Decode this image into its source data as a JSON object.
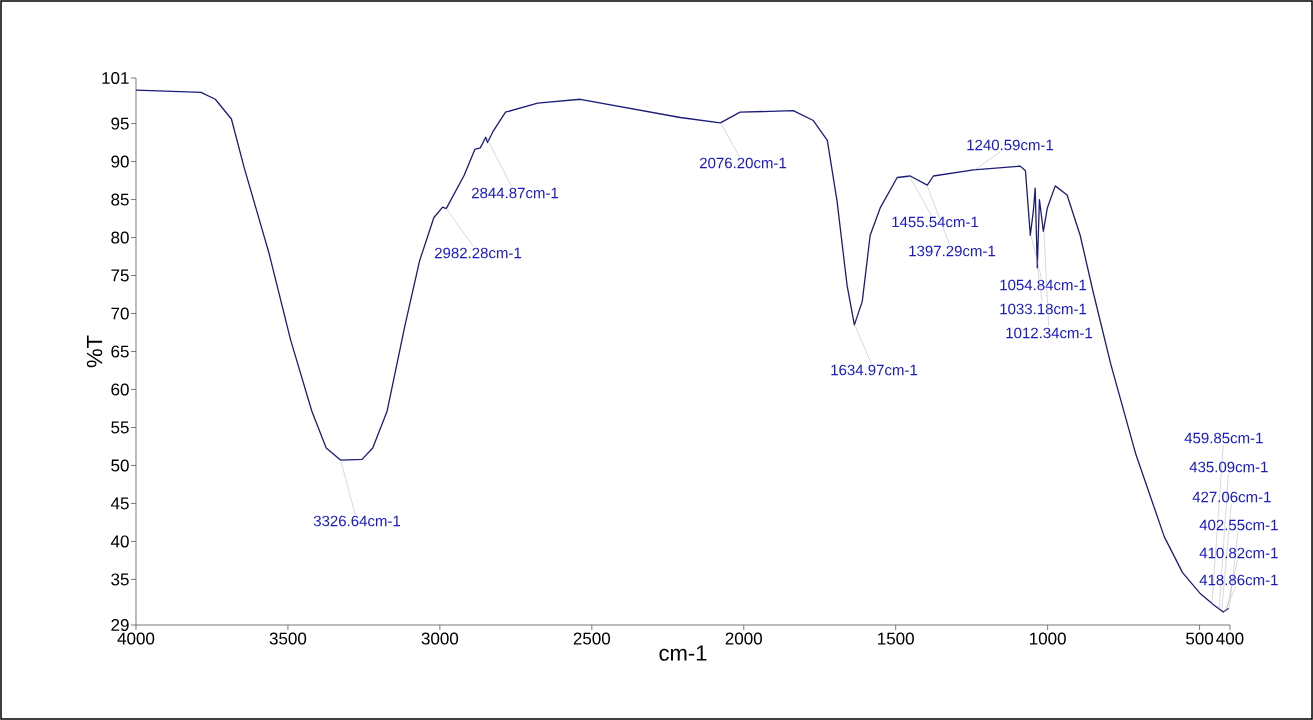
{
  "chart_data": {
    "type": "line",
    "xlabel": "cm-1",
    "ylabel": "%T",
    "x": [
      4000,
      3786,
      3739,
      3686,
      3644,
      3562,
      3491,
      3421,
      3374,
      3326,
      3256,
      3221,
      3174,
      3115,
      3067,
      3020,
      2991,
      2979,
      2920,
      2885,
      2867,
      2849,
      2843,
      2826,
      2784,
      2678,
      2538,
      2209,
      2077,
      2012,
      1837,
      1771,
      1725,
      1693,
      1660,
      1636,
      1610,
      1584,
      1551,
      1495,
      1452,
      1396,
      1376,
      1244,
      1090,
      1073,
      1057,
      1047,
      1041,
      1034,
      1027,
      1014,
      1001,
      975,
      936,
      893,
      850,
      792,
      710,
      616,
      556,
      497,
      452,
      422,
      404
    ],
    "values": [
      99.4,
      99.1,
      98.2,
      95.6,
      89.2,
      77.9,
      66.5,
      57.1,
      52.3,
      50.7,
      50.8,
      52.3,
      57.1,
      68.4,
      76.9,
      82.6,
      84.0,
      83.8,
      88.2,
      91.6,
      91.8,
      93.2,
      92.5,
      93.9,
      96.5,
      97.7,
      98.2,
      95.8,
      95.1,
      96.5,
      96.7,
      95.4,
      92.8,
      84.8,
      73.7,
      68.5,
      71.6,
      80.3,
      83.9,
      87.9,
      88.1,
      86.9,
      88.1,
      88.9,
      89.4,
      88.8,
      80.3,
      83.5,
      86.5,
      76.0,
      85.0,
      80.8,
      83.9,
      86.8,
      85.6,
      80.3,
      72.8,
      63.3,
      51.5,
      40.6,
      35.9,
      33.1,
      31.6,
      30.7,
      31.2
    ],
    "color": "#1c1c78",
    "xlim": [
      4000,
      400
    ],
    "ylim": [
      29,
      101
    ],
    "xticks": [
      4000,
      3500,
      3000,
      2500,
      2000,
      1500,
      1000,
      500,
      400
    ],
    "yticks": [
      29,
      35,
      40,
      45,
      50,
      55,
      60,
      65,
      70,
      75,
      80,
      85,
      90,
      95,
      101
    ],
    "annotations": [
      {
        "text": "3326.64cm-1",
        "x": 3326.64,
        "y": 50.7
      },
      {
        "text": "2982.28cm-1",
        "x": 2982.28,
        "y": 84.0
      },
      {
        "text": "2844.87cm-1",
        "x": 2844.87,
        "y": 93.0
      },
      {
        "text": "2076.20cm-1",
        "x": 2076.2,
        "y": 95.1
      },
      {
        "text": "1634.97cm-1",
        "x": 1634.97,
        "y": 68.5
      },
      {
        "text": "1455.54cm-1",
        "x": 1455.54,
        "y": 88.1
      },
      {
        "text": "1240.59cm-1",
        "x": 1240.59,
        "y": 88.9
      },
      {
        "text": "1397.29cm-1",
        "x": 1397.29,
        "y": 86.9
      },
      {
        "text": "1054.84cm-1",
        "x": 1054.84,
        "y": 80.3
      },
      {
        "text": "1033.18cm-1",
        "x": 1033.18,
        "y": 76.0
      },
      {
        "text": "1012.34cm-1",
        "x": 1012.34,
        "y": 80.8
      },
      {
        "text": "459.85cm-1",
        "x": 459.85,
        "y": 31.6
      },
      {
        "text": "435.09cm-1",
        "x": 435.09,
        "y": 31.2
      },
      {
        "text": "427.06cm-1",
        "x": 427.06,
        "y": 31.0
      },
      {
        "text": "402.55cm-1",
        "x": 402.55,
        "y": 31.2
      },
      {
        "text": "410.82cm-1",
        "x": 410.82,
        "y": 31.0
      },
      {
        "text": "418.86cm-1",
        "x": 418.86,
        "y": 30.7
      }
    ]
  }
}
